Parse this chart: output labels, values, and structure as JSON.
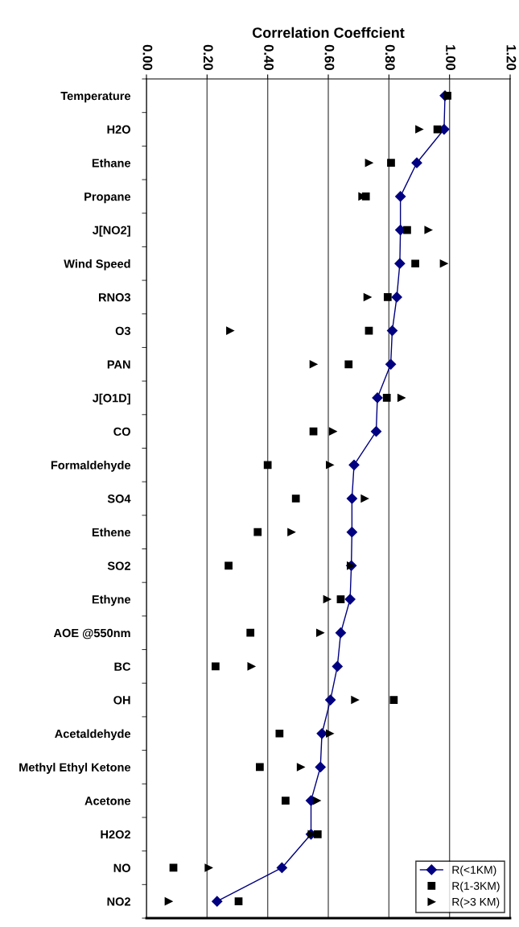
{
  "chart_data": {
    "type": "scatter",
    "orientation": "horizontal",
    "xlabel": "Correlation Coeffcient",
    "categories": [
      "Temperature",
      "H2O",
      "Ethane",
      "Propane",
      "J[NO2]",
      "Wind Speed",
      "RNO3",
      "O3",
      "PAN",
      "J[O1D]",
      "CO",
      "Formaldehyde",
      "SO4",
      "Ethene",
      "SO2",
      "Ethyne",
      "AOE @550nm",
      "BC",
      "OH",
      "Acetaldehyde",
      "Methyl Ethyl Ketone",
      "Acetone",
      "H2O2",
      "NO",
      "NO2"
    ],
    "series": [
      {
        "name": "R(<1KM)",
        "type": "line",
        "marker": "diamond",
        "color": "#000080",
        "values": [
          0.985,
          0.982,
          0.892,
          0.838,
          0.838,
          0.836,
          0.826,
          0.811,
          0.806,
          0.762,
          0.758,
          0.685,
          0.678,
          0.678,
          0.676,
          0.672,
          0.641,
          0.63,
          0.607,
          0.579,
          0.574,
          0.543,
          0.543,
          0.447,
          0.233
        ]
      },
      {
        "name": "R(1-3KM)",
        "marker": "square",
        "color": "#000000",
        "values": [
          0.993,
          0.96,
          0.807,
          0.724,
          0.86,
          0.887,
          0.796,
          0.734,
          0.667,
          0.793,
          0.551,
          0.4,
          0.493,
          0.367,
          0.271,
          0.641,
          0.343,
          0.228,
          0.816,
          0.439,
          0.374,
          0.459,
          0.565,
          0.089,
          0.304
        ]
      },
      {
        "name": "R(>3 KM)",
        "marker": "triangle",
        "color": "#000000",
        "values": [
          null,
          0.9,
          0.734,
          0.712,
          0.93,
          0.981,
          0.729,
          0.276,
          0.551,
          0.841,
          0.615,
          0.605,
          0.72,
          0.478,
          0.674,
          0.596,
          0.573,
          0.346,
          0.688,
          0.605,
          0.509,
          0.562,
          0.545,
          0.205,
          0.073
        ]
      }
    ],
    "xlim": [
      0,
      1.2
    ],
    "xticks": [
      {
        "value": 0,
        "label": "0.00"
      },
      {
        "value": 0.2,
        "label": "0.20"
      },
      {
        "value": 0.4,
        "label": "0.40"
      },
      {
        "value": 0.6,
        "label": "0.60"
      },
      {
        "value": 0.8,
        "label": "0.80"
      },
      {
        "value": 1.0,
        "label": "1.00"
      },
      {
        "value": 1.2,
        "label": "1.20"
      }
    ],
    "grid": "x",
    "legend": "bottom right"
  }
}
